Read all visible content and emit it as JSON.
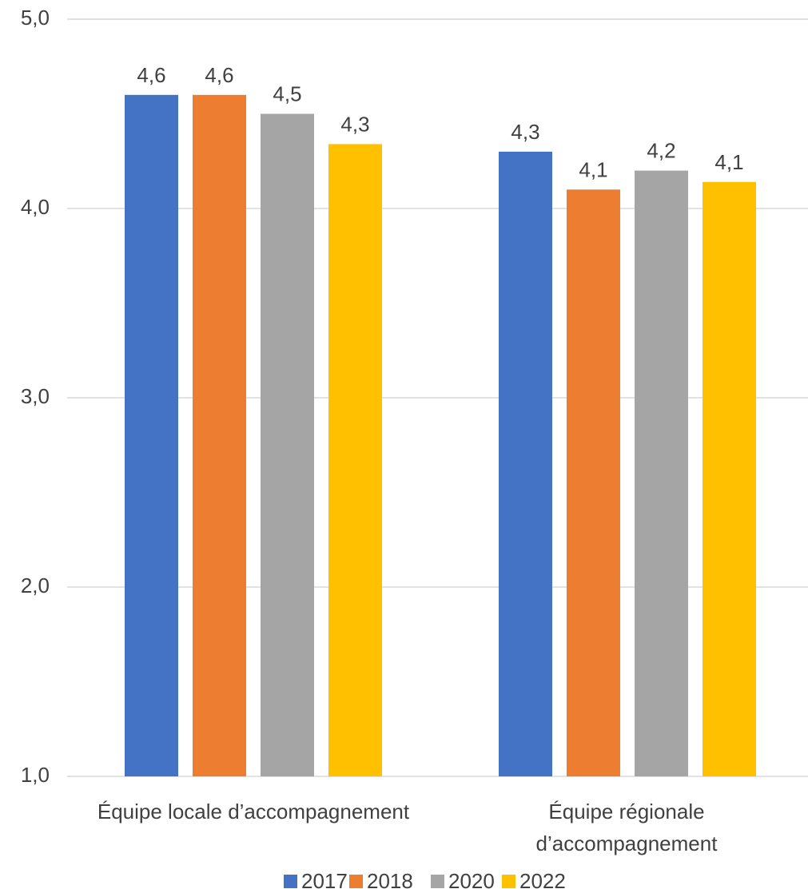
{
  "chart_data": {
    "type": "bar",
    "title": "",
    "xlabel": "",
    "ylabel": "",
    "ylim": [
      1.0,
      5.0
    ],
    "yticks": [
      "1,0",
      "2,0",
      "3,0",
      "4,0",
      "5,0"
    ],
    "grid": true,
    "legend_position": "bottom",
    "categories": [
      [
        "Équipe locale d’accompagnement"
      ],
      [
        "Équipe régionale",
        "d’accompagnement"
      ]
    ],
    "series": [
      {
        "name": "2017",
        "color": "#4472C4",
        "values": [
          4.6,
          4.3
        ],
        "labels": [
          "4,6",
          "4,3"
        ]
      },
      {
        "name": "2018",
        "color": "#ED7D31",
        "values": [
          4.6,
          4.1
        ],
        "labels": [
          "4,6",
          "4,1"
        ]
      },
      {
        "name": "2020",
        "color": "#A5A5A5",
        "values": [
          4.5,
          4.2
        ],
        "labels": [
          "4,5",
          "4,2"
        ]
      },
      {
        "name": "2022",
        "color": "#FFC000",
        "values": [
          4.34,
          4.14
        ],
        "labels": [
          "4,3",
          "4,1"
        ]
      }
    ]
  }
}
